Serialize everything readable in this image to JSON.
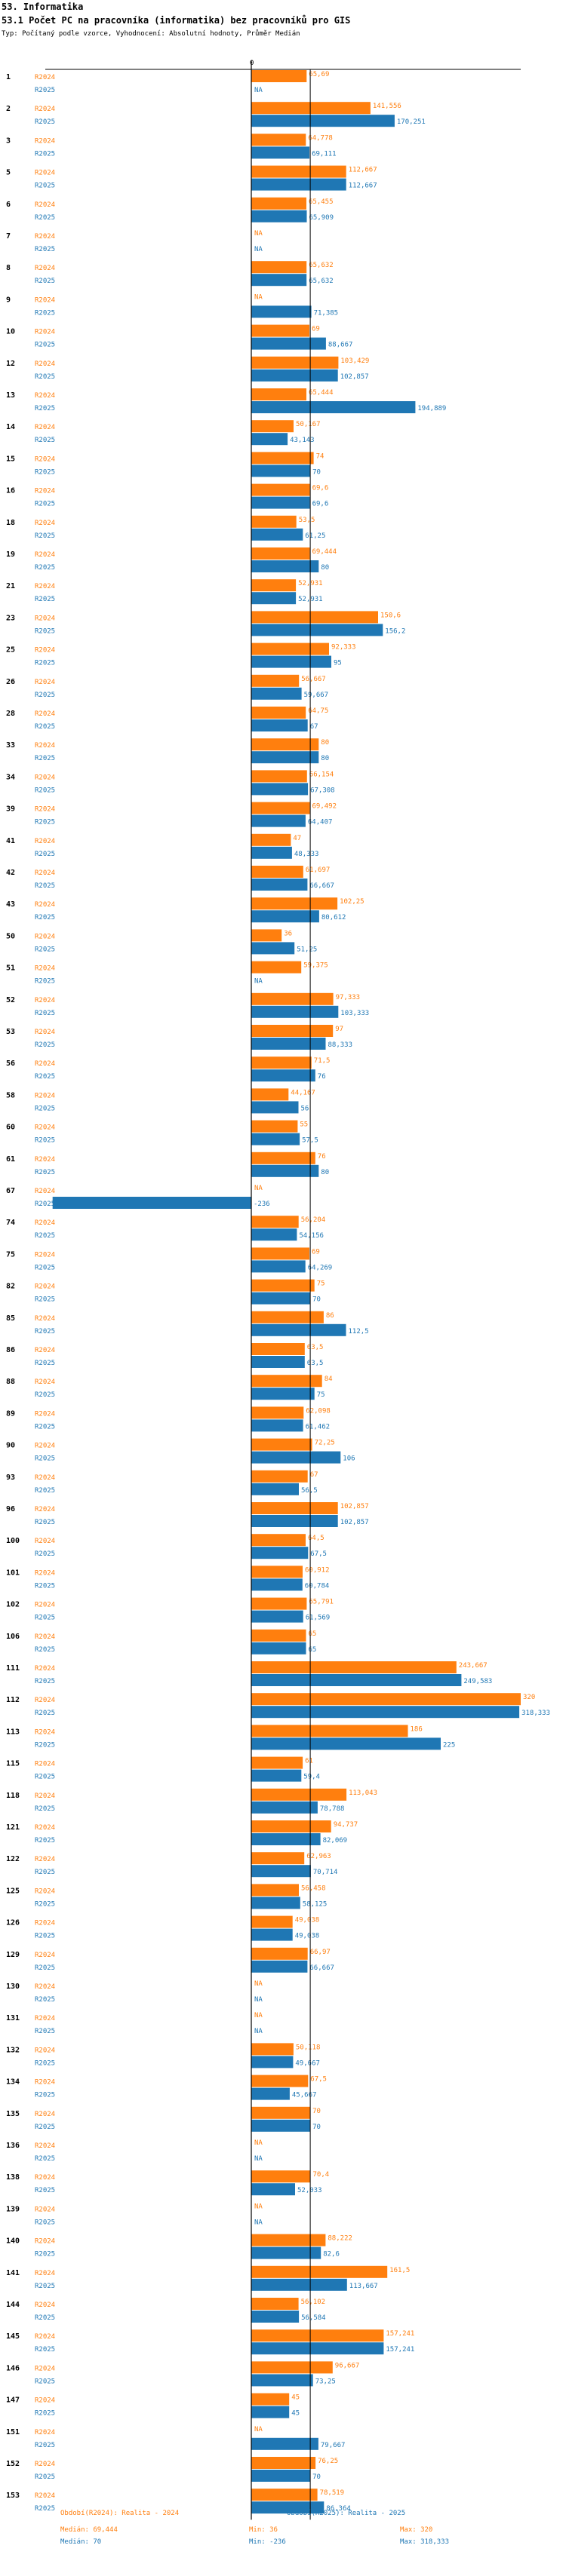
{
  "header": {
    "section": "53. Informatika",
    "title": "53.1 Počet PC na pracovníka (informatika) bez pracovníků pro GIS",
    "subtitle": "Typ: Počítaný podle vzorce, Vyhodnocení: Absolutní hodnoty, Průměr Medián"
  },
  "colors": {
    "r2024": "#ff7f0e",
    "r2025": "#1f77b4",
    "axis": "#000000",
    "text": "#000000"
  },
  "chart_data": {
    "type": "bar",
    "orientation": "horizontal",
    "title": "53.1 Počet PC na pracovníka (informatika) bez pracovníků pro GIS",
    "xlim": [
      -236,
      320
    ],
    "zero_tick_label": "0",
    "na_label": "NA",
    "categories": [
      "1",
      "2",
      "3",
      "5",
      "6",
      "7",
      "8",
      "9",
      "10",
      "12",
      "13",
      "14",
      "15",
      "16",
      "18",
      "19",
      "21",
      "23",
      "25",
      "26",
      "28",
      "33",
      "34",
      "39",
      "41",
      "42",
      "43",
      "50",
      "51",
      "52",
      "53",
      "56",
      "58",
      "60",
      "61",
      "67",
      "74",
      "75",
      "82",
      "85",
      "86",
      "88",
      "89",
      "90",
      "93",
      "96",
      "100",
      "101",
      "102",
      "106",
      "111",
      "112",
      "113",
      "115",
      "118",
      "121",
      "122",
      "125",
      "126",
      "129",
      "130",
      "131",
      "132",
      "134",
      "135",
      "136",
      "138",
      "139",
      "140",
      "141",
      "144",
      "145",
      "146",
      "147",
      "151",
      "152",
      "153"
    ],
    "series": [
      {
        "name": "R2024",
        "values": [
          65.69,
          141.556,
          64.778,
          112.667,
          65.455,
          null,
          65.632,
          null,
          69,
          103.429,
          65.444,
          50.167,
          74,
          69.6,
          53.5,
          69.444,
          52.931,
          150.6,
          92.333,
          56.667,
          64.75,
          80,
          66.154,
          69.492,
          47,
          61.697,
          102.25,
          36,
          59.375,
          97.333,
          97,
          71.5,
          44.167,
          55,
          76,
          null,
          56.204,
          69,
          75,
          86,
          63.5,
          84,
          62.098,
          72.25,
          67,
          102.857,
          64.5,
          60.912,
          65.791,
          65,
          243.667,
          320,
          186,
          61,
          113.043,
          94.737,
          62.963,
          56.458,
          49.038,
          66.97,
          null,
          null,
          50.118,
          67.5,
          70,
          null,
          70.4,
          null,
          88.222,
          161.5,
          56.102,
          157.241,
          96.667,
          45,
          null,
          76.25,
          78.519
        ],
        "labels": [
          "65,69",
          "141,556",
          "64,778",
          "112,667",
          "65,455",
          "NA",
          "65,632",
          "NA",
          "69",
          "103,429",
          "65,444",
          "50,167",
          "74",
          "69,6",
          "53,5",
          "69,444",
          "52,931",
          "150,6",
          "92,333",
          "56,667",
          "64,75",
          "80",
          "66,154",
          "69,492",
          "47",
          "61,697",
          "102,25",
          "36",
          "59,375",
          "97,333",
          "97",
          "71,5",
          "44,167",
          "55",
          "76",
          "NA",
          "56,204",
          "69",
          "75",
          "86",
          "63,5",
          "84",
          "62,098",
          "72,25",
          "67",
          "102,857",
          "64,5",
          "60,912",
          "65,791",
          "65",
          "243,667",
          "320",
          "186",
          "61",
          "113,043",
          "94,737",
          "62,963",
          "56,458",
          "49,038",
          "66,97",
          "NA",
          "NA",
          "50,118",
          "67,5",
          "70",
          "NA",
          "70,4",
          "NA",
          "88,222",
          "161,5",
          "56,102",
          "157,241",
          "96,667",
          "45",
          "NA",
          "76,25",
          "78,519"
        ]
      },
      {
        "name": "R2025",
        "values": [
          null,
          170.251,
          69.111,
          112.667,
          65.909,
          null,
          65.632,
          71.385,
          88.667,
          102.857,
          194.889,
          43.143,
          70,
          69.6,
          61.25,
          80,
          52.931,
          156.2,
          95,
          59.667,
          67,
          80,
          67.308,
          64.407,
          48.333,
          66.667,
          80.612,
          51.25,
          null,
          103.333,
          88.333,
          76,
          56,
          57.5,
          80,
          -236,
          54.156,
          64.269,
          70,
          112.5,
          63.5,
          75,
          61.462,
          106,
          56.5,
          102.857,
          67.5,
          60.784,
          61.569,
          65,
          249.583,
          318.333,
          225,
          59.4,
          78.788,
          82.069,
          70.714,
          58.125,
          49.038,
          66.667,
          null,
          null,
          49.667,
          45.667,
          70,
          null,
          52.033,
          null,
          82.6,
          113.667,
          56.584,
          157.241,
          73.25,
          45,
          79.667,
          70,
          86.364
        ],
        "labels": [
          "NA",
          "170,251",
          "69,111",
          "112,667",
          "65,909",
          "NA",
          "65,632",
          "71,385",
          "88,667",
          "102,857",
          "194,889",
          "43,143",
          "70",
          "69,6",
          "61,25",
          "80",
          "52,931",
          "156,2",
          "95",
          "59,667",
          "67",
          "80",
          "67,308",
          "64,407",
          "48,333",
          "66,667",
          "80,612",
          "51,25",
          "NA",
          "103,333",
          "88,333",
          "76",
          "56",
          "57,5",
          "80",
          "-236",
          "54,156",
          "64,269",
          "70",
          "112,5",
          "63,5",
          "75",
          "61,462",
          "106",
          "56,5",
          "102,857",
          "67,5",
          "60,784",
          "61,569",
          "65",
          "249,583",
          "318,333",
          "225",
          "59,4",
          "78,788",
          "82,069",
          "70,714",
          "58,125",
          "49,038",
          "66,667",
          "NA",
          "NA",
          "49,667",
          "45,667",
          "70",
          "NA",
          "52,033",
          "NA",
          "82,6",
          "113,667",
          "56,584",
          "157,241",
          "73,25",
          "45",
          "79,667",
          "70",
          "86,364"
        ]
      }
    ],
    "reference_line": {
      "value": 70,
      "label": "Medián: 70"
    }
  },
  "footer": {
    "r2024": {
      "legend": "Období(R2024): Realita - 2024",
      "median": "Medián: 69,444",
      "min": "Min: 36",
      "max": "Max: 320"
    },
    "r2025": {
      "legend": "Období(R2025): Realita - 2025",
      "median": "Medián: 70",
      "min": "Min: -236",
      "max": "Max: 318,333"
    }
  }
}
